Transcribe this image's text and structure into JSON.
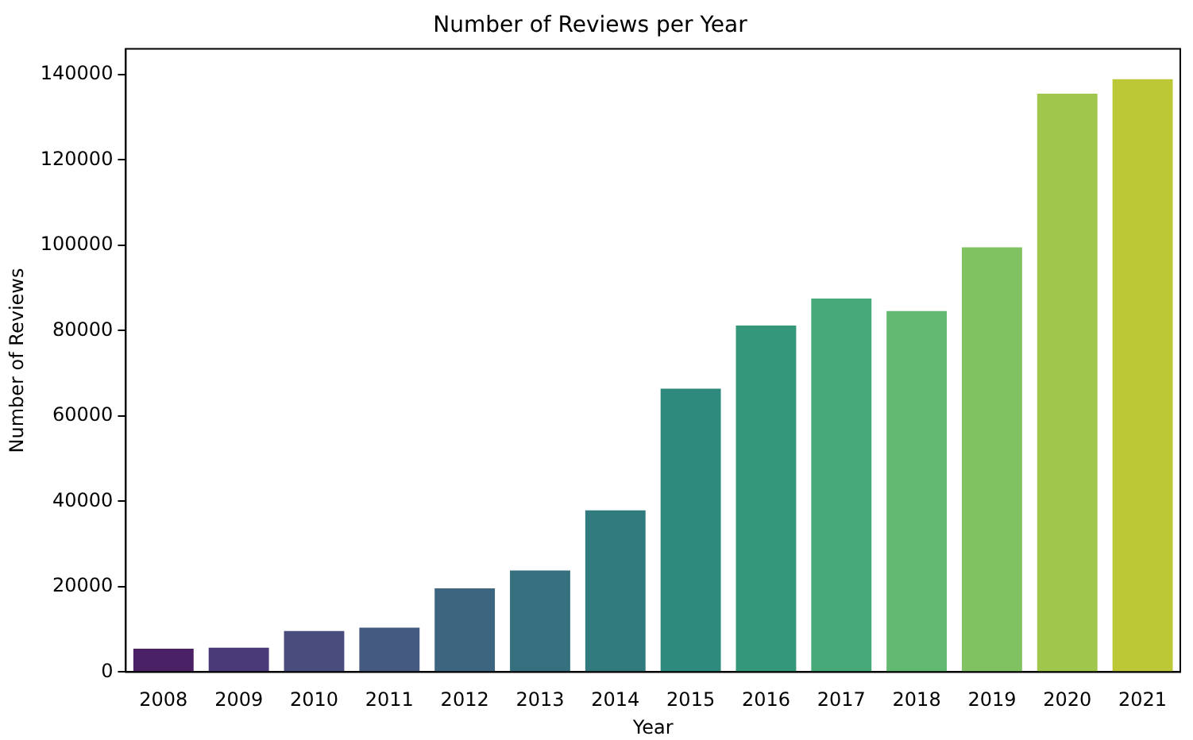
{
  "chart_data": {
    "type": "bar",
    "title": "Number of Reviews per Year",
    "xlabel": "Year",
    "ylabel": "Number of Reviews",
    "categories": [
      "2008",
      "2009",
      "2010",
      "2011",
      "2012",
      "2013",
      "2014",
      "2015",
      "2016",
      "2017",
      "2018",
      "2019",
      "2020",
      "2021"
    ],
    "values": [
      5450,
      5700,
      9600,
      10400,
      19600,
      23800,
      37900,
      66400,
      81200,
      87500,
      84600,
      99500,
      135500,
      138900
    ],
    "colors": [
      "#4b2165",
      "#4b3a78",
      "#4a4c7e",
      "#445a80",
      "#3d6580",
      "#36707f",
      "#317b7f",
      "#2e8a7d",
      "#35977a",
      "#47a878",
      "#63b872",
      "#80c262",
      "#a0c64b",
      "#bcc835"
    ],
    "ylim": [
      0,
      146000
    ],
    "yticks": [
      0,
      20000,
      40000,
      60000,
      80000,
      100000,
      120000,
      140000
    ],
    "grid": false,
    "legend": false
  }
}
